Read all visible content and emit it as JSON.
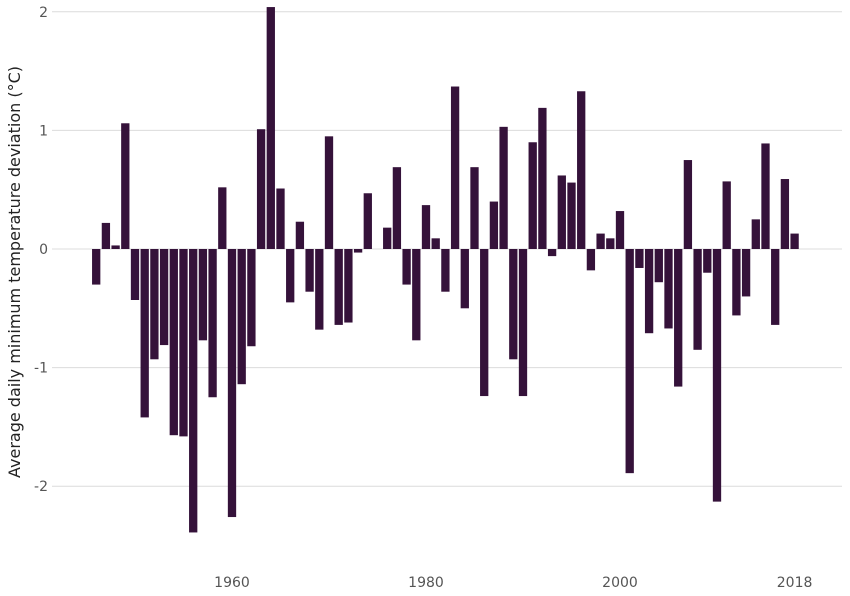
{
  "chart_data": {
    "type": "bar",
    "title": "",
    "xlabel": "",
    "ylabel": "Average daily minimum temperature deviation (°C)",
    "ylim": [
      -2.55,
      2.1
    ],
    "xlim": [
      1944.5,
      2020.5
    ],
    "grid": "horizontal",
    "legend": "none",
    "bar_color": "#35123a",
    "grid_color": "#dcdcdc",
    "y_ticks": [
      {
        "value": -2,
        "label": "-2"
      },
      {
        "value": -1,
        "label": "-1"
      },
      {
        "value": 0,
        "label": "0"
      },
      {
        "value": 1,
        "label": "1"
      },
      {
        "value": 2,
        "label": "2"
      }
    ],
    "x_ticks": [
      {
        "value": 1960,
        "label": "1960"
      },
      {
        "value": 1980,
        "label": "1980"
      },
      {
        "value": 2000,
        "label": "2000"
      },
      {
        "value": 2018,
        "label": "2018"
      }
    ],
    "x": [
      1946,
      1947,
      1948,
      1949,
      1950,
      1951,
      1952,
      1953,
      1954,
      1955,
      1956,
      1957,
      1958,
      1959,
      1960,
      1961,
      1962,
      1963,
      1964,
      1965,
      1966,
      1967,
      1968,
      1969,
      1970,
      1971,
      1972,
      1973,
      1974,
      1975,
      1976,
      1977,
      1978,
      1979,
      1980,
      1981,
      1982,
      1983,
      1984,
      1985,
      1986,
      1987,
      1988,
      1989,
      1990,
      1991,
      1992,
      1993,
      1994,
      1995,
      1996,
      1997,
      1998,
      1999,
      2000,
      2001,
      2002,
      2003,
      2004,
      2005,
      2006,
      2007,
      2008,
      2009,
      2010,
      2011,
      2012,
      2013,
      2014,
      2015,
      2016,
      2017,
      2018
    ],
    "values": [
      -0.3,
      0.22,
      0.03,
      1.06,
      -0.43,
      -1.42,
      -0.93,
      -0.81,
      -1.57,
      -1.58,
      -2.39,
      -0.77,
      -1.25,
      0.52,
      -2.26,
      -1.14,
      -0.82,
      1.01,
      2.04,
      0.51,
      -0.45,
      0.23,
      -0.36,
      -0.68,
      0.95,
      -0.64,
      -0.62,
      -0.03,
      0.47,
      0.0,
      0.18,
      0.69,
      -0.3,
      -0.77,
      0.37,
      0.09,
      -0.36,
      1.37,
      -0.5,
      0.69,
      -1.24,
      0.4,
      1.03,
      -0.93,
      -1.24,
      0.9,
      1.19,
      -0.06,
      0.62,
      0.56,
      1.33,
      -0.18,
      0.13,
      0.09,
      0.32,
      -1.89,
      -0.16,
      -0.71,
      -0.28,
      -0.67,
      -1.16,
      0.75,
      -0.85,
      -0.2,
      -2.13,
      0.57,
      -0.56,
      -0.4,
      0.25,
      0.89,
      -0.64,
      0.59,
      0.13
    ]
  }
}
